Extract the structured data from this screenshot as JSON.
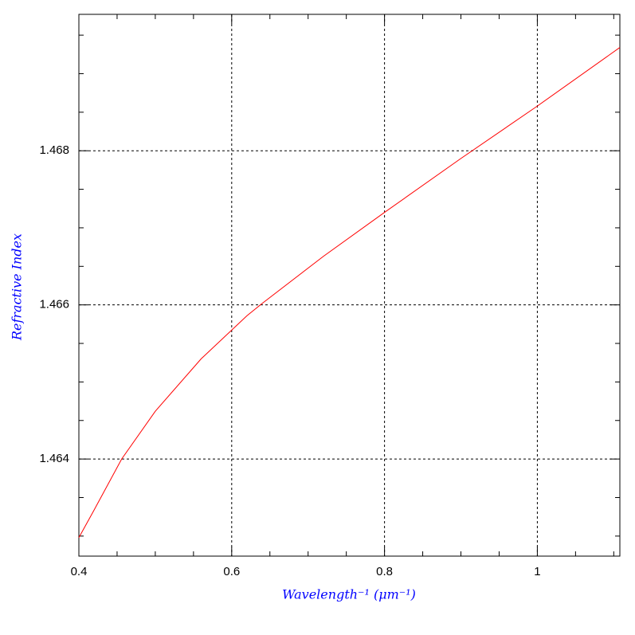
{
  "chart_data": {
    "type": "line",
    "x_label": "Wavelength⁻¹ (μm⁻¹)",
    "y_label": "Refractive Index",
    "x": [
      0.4,
      0.42,
      0.456,
      0.5,
      0.56,
      0.62,
      0.64,
      0.72,
      0.8,
      0.9,
      1.0,
      1.108
    ],
    "series": [
      {
        "color": "#ff0000",
        "values": [
          1.46298,
          1.46334,
          1.464,
          1.46462,
          1.4653,
          1.46586,
          1.46602,
          1.46663,
          1.4672,
          1.4679,
          1.46858,
          1.46934
        ]
      }
    ],
    "xlim": [
      0.4,
      1.108
    ],
    "ylim": [
      1.46274,
      1.46977
    ],
    "xticks": [
      0.4,
      0.6,
      0.8,
      1
    ],
    "yticks": [
      1.464,
      1.466,
      1.468
    ],
    "xminorticks": [
      0.45,
      0.5,
      0.55,
      0.65,
      0.7,
      0.75,
      0.85,
      0.9,
      0.95,
      1.05,
      1.1
    ],
    "yminorticks": [
      1.463,
      1.4635,
      1.4645,
      1.465,
      1.4655,
      1.4665,
      1.467,
      1.4675,
      1.4685,
      1.469,
      1.4695
    ],
    "grid": true
  }
}
